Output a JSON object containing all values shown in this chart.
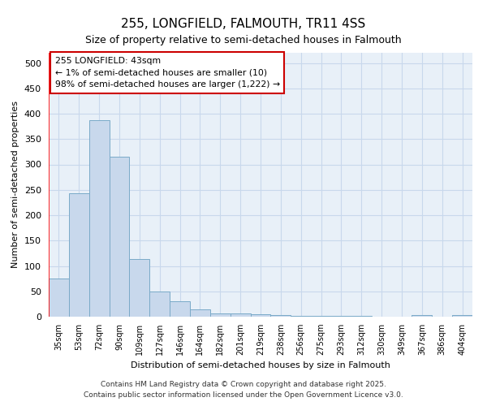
{
  "title": "255, LONGFIELD, FALMOUTH, TR11 4SS",
  "subtitle": "Size of property relative to semi-detached houses in Falmouth",
  "xlabel": "Distribution of semi-detached houses by size in Falmouth",
  "ylabel": "Number of semi-detached properties",
  "categories": [
    "35sqm",
    "53sqm",
    "72sqm",
    "90sqm",
    "109sqm",
    "127sqm",
    "146sqm",
    "164sqm",
    "182sqm",
    "201sqm",
    "219sqm",
    "238sqm",
    "256sqm",
    "275sqm",
    "293sqm",
    "312sqm",
    "330sqm",
    "349sqm",
    "367sqm",
    "386sqm",
    "404sqm"
  ],
  "values": [
    75,
    243,
    387,
    315,
    114,
    50,
    30,
    15,
    7,
    7,
    5,
    3,
    2,
    2,
    1,
    1,
    0,
    0,
    4,
    0,
    4
  ],
  "bar_color": "#c8d8ec",
  "bar_edge_color": "#7aaac8",
  "annotation_line1": "255 LONGFIELD: 43sqm",
  "annotation_line2": "← 1% of semi-detached houses are smaller (10)",
  "annotation_line3": "98% of semi-detached houses are larger (1,222) →",
  "annotation_box_color": "#ffffff",
  "annotation_box_edge": "#cc0000",
  "red_line_x": -0.5,
  "ylim": [
    0,
    520
  ],
  "yticks": [
    0,
    50,
    100,
    150,
    200,
    250,
    300,
    350,
    400,
    450,
    500
  ],
  "grid_color": "#c8d8ec",
  "bg_color": "#e8f0f8",
  "footer_line1": "Contains HM Land Registry data © Crown copyright and database right 2025.",
  "footer_line2": "Contains public sector information licensed under the Open Government Licence v3.0."
}
